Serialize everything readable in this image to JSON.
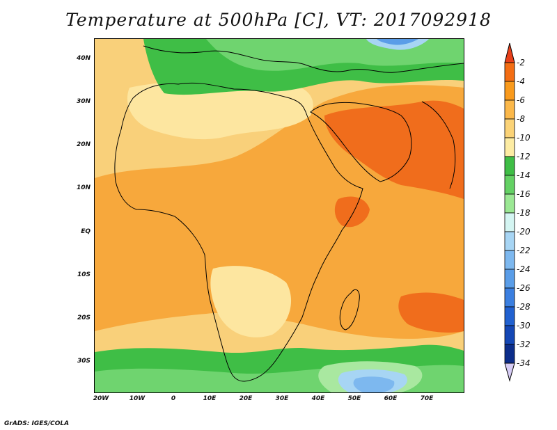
{
  "title": "Temperature at 500hPa [C], VT: 2017092918",
  "credit": "GrADS: IGES/COLA",
  "lat_labels": [
    "40N",
    "30N",
    "20N",
    "10N",
    "EQ",
    "10S",
    "20S",
    "30S"
  ],
  "lon_labels": [
    "20W",
    "10W",
    "0",
    "10E",
    "20E",
    "30E",
    "40E",
    "50E",
    "60E",
    "70E"
  ],
  "colorbar": {
    "labels": [
      "-2",
      "-4",
      "-6",
      "-8",
      "-10",
      "-12",
      "-14",
      "-16",
      "-18",
      "-20",
      "-22",
      "-24",
      "-26",
      "-28",
      "-30",
      "-32",
      "-34"
    ],
    "colors": [
      "#e8401a",
      "#f36d13",
      "#f99a1c",
      "#fbb84a",
      "#fbd377",
      "#fdeca3",
      "#3fbe46",
      "#64d164",
      "#9be894",
      "#d4f5f2",
      "#a7d5f4",
      "#7db8ef",
      "#5a9de8",
      "#3b7fe0",
      "#2161d0",
      "#1447b5",
      "#0c2d8a",
      "#0a1a6a"
    ]
  },
  "map_colors": {
    "base": "#f9d07a",
    "warm_orange": "#f7a83c",
    "hot_red": "#f06d1c",
    "cool_yellow": "#fde6a0",
    "green": "#3fbe46",
    "light_green": "#6fd46f",
    "pale_green": "#a9e8a0",
    "light_blue": "#a7d5f4",
    "blue": "#5a9de8"
  }
}
